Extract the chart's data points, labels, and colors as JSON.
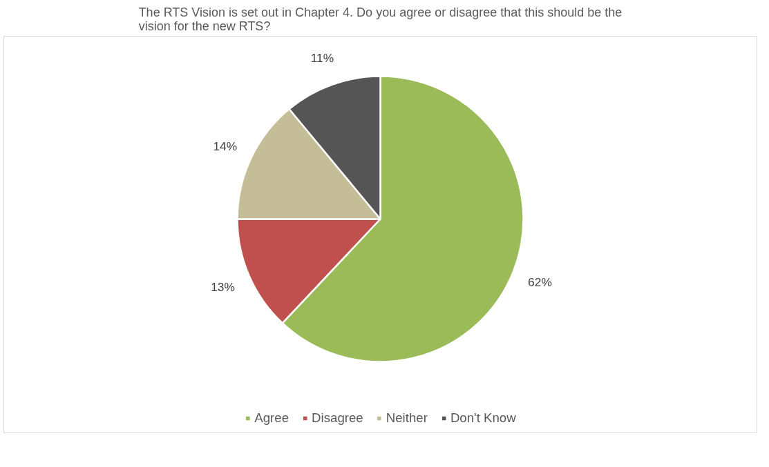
{
  "chart_data": {
    "type": "pie",
    "title": "The RTS Vision is set out in Chapter 4. Do you agree or disagree that this should be the vision for the new RTS?",
    "categories": [
      "Agree",
      "Disagree",
      "Neither",
      "Don't Know"
    ],
    "values": [
      62,
      13,
      14,
      11
    ],
    "colors": [
      "#9bbb59",
      "#c0504d",
      "#c4bd97",
      "#555555"
    ],
    "value_labels": [
      "62%",
      "13%",
      "14%",
      "11%"
    ],
    "legend": "bottom"
  }
}
